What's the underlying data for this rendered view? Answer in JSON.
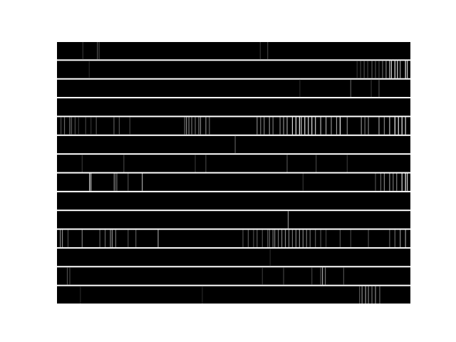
{
  "chart_data": {
    "type": "heatmap",
    "description_kind": "stacked barcode strips (one row per series, grayscale intensity along x)",
    "colormap": "gray",
    "background": "#ffffff",
    "xlim": [
      0,
      1
    ],
    "grid": false,
    "legend": "none",
    "rows": [
      {
        "stripes": [
          [
            0.072,
            0.2
          ],
          [
            0.113,
            0.3
          ],
          [
            0.118,
            0.25
          ],
          [
            0.574,
            0.2
          ],
          [
            0.595,
            0.25
          ]
        ]
      },
      {
        "stripes": [
          [
            0.09,
            0.15
          ],
          [
            0.848,
            0.2
          ],
          [
            0.858,
            0.25
          ],
          [
            0.868,
            0.3
          ],
          [
            0.878,
            0.25
          ],
          [
            0.89,
            0.35
          ],
          [
            0.9,
            0.3
          ],
          [
            0.91,
            0.25
          ],
          [
            0.92,
            0.4
          ],
          [
            0.93,
            0.5
          ],
          [
            0.94,
            0.7
          ],
          [
            0.945,
            0.85
          ],
          [
            0.955,
            0.9
          ],
          [
            0.962,
            0.85
          ],
          [
            0.97,
            0.6
          ],
          [
            0.985,
            0.95
          ],
          [
            0.99,
            0.8
          ]
        ]
      },
      {
        "stripes": [
          [
            0.686,
            0.15
          ],
          [
            0.83,
            0.35
          ],
          [
            0.888,
            0.2
          ],
          [
            0.91,
            0.3
          ]
        ]
      },
      {
        "stripes": []
      },
      {
        "stripes": [
          [
            0.01,
            0.3
          ],
          [
            0.02,
            0.4
          ],
          [
            0.035,
            0.45
          ],
          [
            0.04,
            0.35
          ],
          [
            0.05,
            0.3
          ],
          [
            0.06,
            0.2
          ],
          [
            0.08,
            0.25
          ],
          [
            0.095,
            0.2
          ],
          [
            0.11,
            0.3
          ],
          [
            0.16,
            0.35
          ],
          [
            0.175,
            0.3
          ],
          [
            0.205,
            0.25
          ],
          [
            0.36,
            0.4
          ],
          [
            0.365,
            0.55
          ],
          [
            0.372,
            0.5
          ],
          [
            0.38,
            0.45
          ],
          [
            0.39,
            0.4
          ],
          [
            0.4,
            0.45
          ],
          [
            0.405,
            0.5
          ],
          [
            0.42,
            0.5
          ],
          [
            0.43,
            0.4
          ],
          [
            0.565,
            0.5
          ],
          [
            0.575,
            0.45
          ],
          [
            0.585,
            0.5
          ],
          [
            0.6,
            0.55
          ],
          [
            0.61,
            0.45
          ],
          [
            0.63,
            0.5
          ],
          [
            0.64,
            0.55
          ],
          [
            0.65,
            0.6
          ],
          [
            0.665,
            0.85
          ],
          [
            0.675,
            0.9
          ],
          [
            0.685,
            0.95
          ],
          [
            0.69,
            0.8
          ],
          [
            0.7,
            0.9
          ],
          [
            0.71,
            0.85
          ],
          [
            0.72,
            0.9
          ],
          [
            0.73,
            0.8
          ],
          [
            0.745,
            0.7
          ],
          [
            0.76,
            0.65
          ],
          [
            0.775,
            0.55
          ],
          [
            0.79,
            0.6
          ],
          [
            0.8,
            0.95
          ],
          [
            0.82,
            0.5
          ],
          [
            0.86,
            0.55
          ],
          [
            0.87,
            0.45
          ],
          [
            0.88,
            0.5
          ],
          [
            0.91,
            0.6
          ],
          [
            0.925,
            0.5
          ],
          [
            0.94,
            0.7
          ],
          [
            0.955,
            0.95
          ],
          [
            0.965,
            0.9
          ],
          [
            0.975,
            0.95
          ],
          [
            0.985,
            0.85
          ]
        ]
      },
      {
        "stripes": [
          [
            0.503,
            0.35
          ]
        ]
      },
      {
        "stripes": [
          [
            0.07,
            0.2
          ],
          [
            0.188,
            0.25
          ],
          [
            0.39,
            0.2
          ],
          [
            0.42,
            0.25
          ],
          [
            0.65,
            0.3
          ],
          [
            0.732,
            0.25
          ],
          [
            0.82,
            0.2
          ]
        ]
      },
      {
        "stripes": [
          [
            0.091,
            0.85
          ],
          [
            0.095,
            0.7
          ],
          [
            0.16,
            0.35
          ],
          [
            0.163,
            0.4
          ],
          [
            0.168,
            0.45
          ],
          [
            0.2,
            0.3
          ],
          [
            0.24,
            0.65
          ],
          [
            0.695,
            0.2
          ],
          [
            0.9,
            0.3
          ],
          [
            0.915,
            0.4
          ],
          [
            0.925,
            0.5
          ],
          [
            0.94,
            0.55
          ],
          [
            0.95,
            0.45
          ],
          [
            0.96,
            0.5
          ],
          [
            0.975,
            0.85
          ],
          [
            0.985,
            0.95
          ],
          [
            0.99,
            0.8
          ]
        ]
      },
      {
        "stripes": []
      },
      {
        "stripes": [
          [
            0.653,
            0.55
          ]
        ]
      },
      {
        "stripes": [
          [
            0.008,
            0.5
          ],
          [
            0.014,
            0.55
          ],
          [
            0.03,
            0.3
          ],
          [
            0.07,
            0.45
          ],
          [
            0.12,
            0.35
          ],
          [
            0.135,
            0.4
          ],
          [
            0.15,
            0.5
          ],
          [
            0.155,
            0.55
          ],
          [
            0.165,
            0.45
          ],
          [
            0.2,
            0.3
          ],
          [
            0.222,
            0.35
          ],
          [
            0.285,
            0.6
          ],
          [
            0.525,
            0.3
          ],
          [
            0.54,
            0.35
          ],
          [
            0.555,
            0.3
          ],
          [
            0.565,
            0.35
          ],
          [
            0.58,
            0.3
          ],
          [
            0.595,
            0.35
          ],
          [
            0.6,
            0.4
          ],
          [
            0.61,
            0.45
          ],
          [
            0.615,
            0.5
          ],
          [
            0.625,
            0.45
          ],
          [
            0.635,
            0.5
          ],
          [
            0.645,
            0.55
          ],
          [
            0.655,
            0.5
          ],
          [
            0.665,
            0.45
          ],
          [
            0.675,
            0.5
          ],
          [
            0.685,
            0.55
          ],
          [
            0.695,
            0.5
          ],
          [
            0.705,
            0.45
          ],
          [
            0.715,
            0.4
          ],
          [
            0.73,
            0.35
          ],
          [
            0.745,
            0.3
          ],
          [
            0.76,
            0.25
          ],
          [
            0.8,
            0.3
          ],
          [
            0.83,
            0.25
          ],
          [
            0.88,
            0.3
          ],
          [
            0.94,
            0.35
          ],
          [
            0.955,
            0.4
          ],
          [
            0.97,
            0.55
          ],
          [
            0.985,
            0.6
          ]
        ]
      },
      {
        "stripes": [
          [
            0.602,
            0.15
          ]
        ]
      },
      {
        "stripes": [
          [
            0.028,
            0.3
          ],
          [
            0.035,
            0.25
          ],
          [
            0.58,
            0.2
          ],
          [
            0.64,
            0.25
          ],
          [
            0.72,
            0.25
          ],
          [
            0.745,
            0.3
          ],
          [
            0.75,
            0.65
          ],
          [
            0.758,
            0.45
          ],
          [
            0.81,
            0.3
          ]
        ]
      },
      {
        "stripes": [
          [
            0.065,
            0.15
          ],
          [
            0.41,
            0.15
          ],
          [
            0.855,
            0.35
          ],
          [
            0.862,
            0.55
          ],
          [
            0.872,
            0.6
          ],
          [
            0.88,
            0.5
          ],
          [
            0.89,
            0.45
          ],
          [
            0.9,
            0.55
          ],
          [
            0.912,
            0.4
          ]
        ]
      }
    ]
  }
}
